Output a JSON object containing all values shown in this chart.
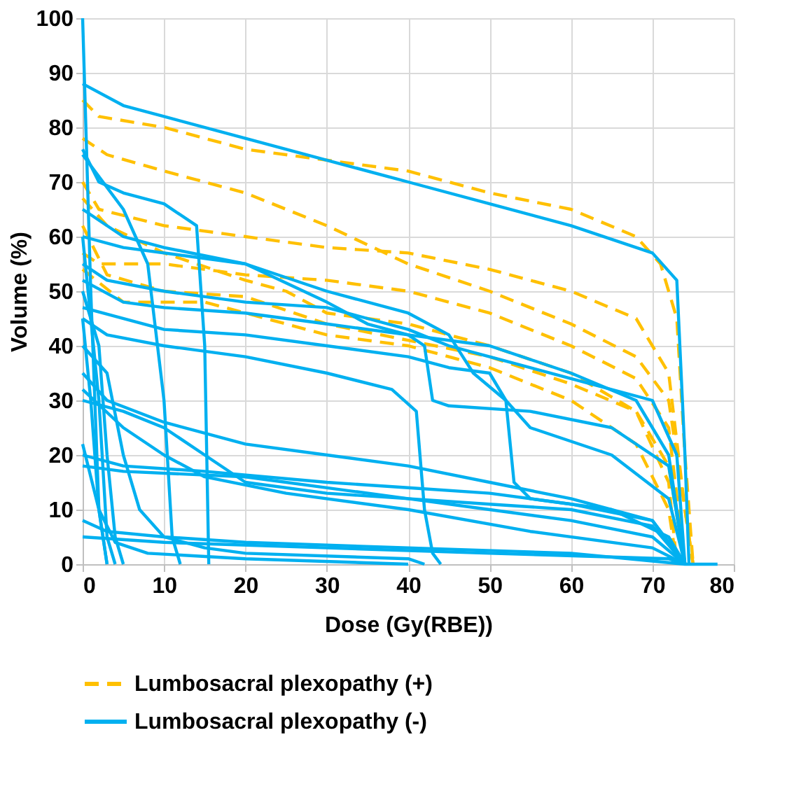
{
  "chart_data": {
    "type": "line",
    "xlabel": "Dose (Gy(RBE))",
    "ylabel": "Volume (%)",
    "xlim": [
      0,
      80
    ],
    "xticks": [
      0,
      10,
      20,
      30,
      40,
      50,
      60,
      70,
      80
    ],
    "ylim": [
      0,
      100
    ],
    "yticks": [
      0,
      10,
      20,
      30,
      40,
      50,
      60,
      70,
      80,
      90,
      100
    ],
    "grid": true,
    "legend": "bottom",
    "series": [
      {
        "name": "Lumbosacral plexopathy (+)",
        "color": "#ffc000",
        "line_style": "dashed",
        "x": [
          0,
          2,
          10,
          20,
          30,
          40,
          50,
          60,
          68,
          71,
          73,
          74,
          75
        ],
        "values": [
          85,
          82,
          80,
          76,
          74,
          72,
          68,
          65,
          60,
          55,
          45,
          20,
          0
        ]
      },
      {
        "color": "#ffc000",
        "line_style": "dashed",
        "x": [
          0,
          3,
          10,
          20,
          30,
          40,
          50,
          60,
          68,
          72,
          74,
          75
        ],
        "values": [
          78,
          75,
          72,
          68,
          62,
          55,
          50,
          44,
          38,
          30,
          10,
          0
        ]
      },
      {
        "color": "#ffc000",
        "line_style": "dashed",
        "x": [
          0,
          2,
          10,
          20,
          30,
          40,
          50,
          60,
          68,
          72,
          74,
          75
        ],
        "values": [
          70,
          65,
          62,
          60,
          58,
          57,
          54,
          50,
          45,
          35,
          10,
          0
        ]
      },
      {
        "color": "#ffc000",
        "line_style": "dashed",
        "x": [
          0,
          3,
          10,
          20,
          25,
          30,
          40,
          50,
          60,
          68,
          72,
          73
        ],
        "values": [
          67,
          62,
          57,
          52,
          50,
          46,
          44,
          40,
          35,
          28,
          15,
          0
        ]
      },
      {
        "color": "#ffc000",
        "line_style": "dashed",
        "x": [
          0,
          2,
          10,
          20,
          30,
          40,
          50,
          60,
          68,
          72,
          74
        ],
        "values": [
          57,
          55,
          55,
          53,
          52,
          50,
          46,
          40,
          34,
          25,
          0
        ]
      },
      {
        "color": "#ffc000",
        "line_style": "dashed",
        "x": [
          0,
          3,
          10,
          20,
          30,
          40,
          50,
          60,
          68,
          72,
          74
        ],
        "values": [
          62,
          53,
          50,
          49,
          44,
          41,
          38,
          33,
          28,
          18,
          0
        ]
      },
      {
        "color": "#ffc000",
        "line_style": "dashed",
        "x": [
          0,
          5,
          15,
          20,
          30,
          40,
          50,
          60,
          68,
          72,
          73
        ],
        "values": [
          54,
          48,
          48,
          46,
          42,
          40,
          36,
          30,
          22,
          10,
          0
        ]
      },
      {
        "name": "Lumbosacral plexopathy (-)",
        "color": "#00b0f0",
        "line_style": "solid",
        "x": [
          0,
          5,
          10,
          20,
          30,
          40,
          50,
          60,
          70,
          73,
          74,
          74.5
        ],
        "values": [
          88,
          84,
          82,
          78,
          74,
          70,
          66,
          62,
          57,
          52,
          20,
          0
        ]
      },
      {
        "color": "#00b0f0",
        "line_style": "solid",
        "x": [
          0,
          2,
          5,
          10,
          14,
          15,
          15.5
        ],
        "values": [
          76,
          70,
          68,
          66,
          62,
          40,
          0
        ]
      },
      {
        "color": "#00b0f0",
        "line_style": "solid",
        "x": [
          0,
          5,
          8,
          10,
          11,
          12
        ],
        "values": [
          75,
          65,
          55,
          30,
          5,
          0
        ]
      },
      {
        "color": "#00b0f0",
        "line_style": "solid",
        "x": [
          0,
          5,
          10,
          20,
          30,
          35,
          40,
          50,
          60,
          68,
          72,
          74
        ],
        "values": [
          65,
          60,
          58,
          55,
          48,
          44,
          42,
          40,
          35,
          30,
          20,
          0
        ]
      },
      {
        "color": "#00b0f0",
        "line_style": "solid",
        "x": [
          0,
          3,
          10,
          20,
          30,
          35,
          40,
          45,
          50,
          60,
          70,
          73,
          74
        ],
        "values": [
          55,
          52,
          50,
          48,
          47,
          45,
          43,
          40,
          38,
          34,
          30,
          20,
          0
        ]
      },
      {
        "color": "#00b0f0",
        "line_style": "solid",
        "x": [
          0,
          5,
          10,
          20,
          30,
          40,
          42,
          43,
          45,
          55,
          65,
          72,
          74
        ],
        "values": [
          52,
          48,
          47,
          46,
          44,
          42,
          40,
          30,
          29,
          28,
          25,
          18,
          0
        ]
      },
      {
        "color": "#00b0f0",
        "line_style": "solid",
        "x": [
          0,
          5,
          20,
          30,
          40,
          45,
          48,
          52,
          55,
          65,
          72,
          74
        ],
        "values": [
          60,
          58,
          55,
          50,
          46,
          42,
          35,
          30,
          25,
          20,
          12,
          0
        ]
      },
      {
        "color": "#00b0f0",
        "line_style": "solid",
        "x": [
          0,
          3,
          10,
          20,
          30,
          38,
          41,
          42,
          43,
          44
        ],
        "values": [
          45,
          42,
          40,
          38,
          35,
          32,
          28,
          10,
          2,
          0
        ]
      },
      {
        "color": "#00b0f0",
        "line_style": "solid",
        "x": [
          0,
          10,
          20,
          30,
          40,
          45,
          50,
          52,
          53,
          55,
          65,
          72,
          74
        ],
        "values": [
          47,
          43,
          42,
          40,
          38,
          36,
          35,
          30,
          15,
          12,
          10,
          5,
          0
        ]
      },
      {
        "color": "#00b0f0",
        "line_style": "solid",
        "x": [
          0,
          3,
          10,
          20,
          30,
          40,
          50,
          60,
          70,
          74
        ],
        "values": [
          35,
          30,
          26,
          22,
          20,
          18,
          15,
          12,
          8,
          0
        ]
      },
      {
        "color": "#00b0f0",
        "line_style": "solid",
        "x": [
          0,
          5,
          10,
          15,
          20,
          30,
          40,
          50,
          60,
          70,
          74
        ],
        "values": [
          30,
          28,
          25,
          20,
          15,
          13,
          12,
          10,
          8,
          5,
          0
        ]
      },
      {
        "color": "#00b0f0",
        "line_style": "solid",
        "x": [
          0,
          5,
          15,
          30,
          40,
          50,
          60,
          70,
          74
        ],
        "values": [
          20,
          18,
          17,
          15,
          14,
          13,
          11,
          8,
          0
        ]
      },
      {
        "color": "#00b0f0",
        "line_style": "solid",
        "x": [
          0,
          5,
          20,
          40,
          50,
          60,
          70,
          74
        ],
        "values": [
          18,
          17,
          16,
          12,
          11,
          10,
          7,
          0
        ]
      },
      {
        "color": "#00b0f0",
        "line_style": "solid",
        "x": [
          0,
          3,
          10,
          20,
          40,
          60,
          74
        ],
        "values": [
          8,
          6,
          5,
          4,
          3,
          2,
          0
        ]
      },
      {
        "color": "#00b0f0",
        "line_style": "solid",
        "x": [
          0,
          10,
          30,
          50,
          72,
          74,
          78
        ],
        "values": [
          5,
          4,
          3,
          2,
          1,
          0,
          0
        ]
      },
      {
        "color": "#00b0f0",
        "line_style": "solid",
        "x": [
          0,
          2,
          3,
          4,
          5
        ],
        "values": [
          50,
          40,
          20,
          5,
          0
        ]
      },
      {
        "color": "#00b0f0",
        "line_style": "solid",
        "x": [
          0,
          1,
          2,
          3
        ],
        "values": [
          45,
          30,
          10,
          0
        ]
      },
      {
        "color": "#00b0f0",
        "line_style": "solid",
        "x": [
          0,
          3,
          5,
          7,
          10,
          15,
          20,
          40,
          42
        ],
        "values": [
          40,
          35,
          20,
          10,
          5,
          3,
          2,
          1,
          0
        ]
      },
      {
        "color": "#00b0f0",
        "line_style": "solid",
        "x": [
          0,
          2,
          3,
          4
        ],
        "values": [
          60,
          30,
          5,
          0
        ]
      },
      {
        "color": "#00b0f0",
        "line_style": "solid",
        "x": [
          0,
          1,
          2,
          3
        ],
        "values": [
          100,
          50,
          10,
          0
        ]
      },
      {
        "color": "#00b0f0",
        "line_style": "solid",
        "x": [
          0,
          5,
          10,
          15,
          25,
          40,
          55,
          70,
          74
        ],
        "values": [
          32,
          25,
          20,
          16,
          13,
          10,
          6,
          3,
          0
        ]
      },
      {
        "color": "#00b0f0",
        "line_style": "solid",
        "x": [
          0,
          2,
          4,
          8,
          20,
          40
        ],
        "values": [
          22,
          10,
          4,
          2,
          1,
          0
        ]
      }
    ]
  }
}
